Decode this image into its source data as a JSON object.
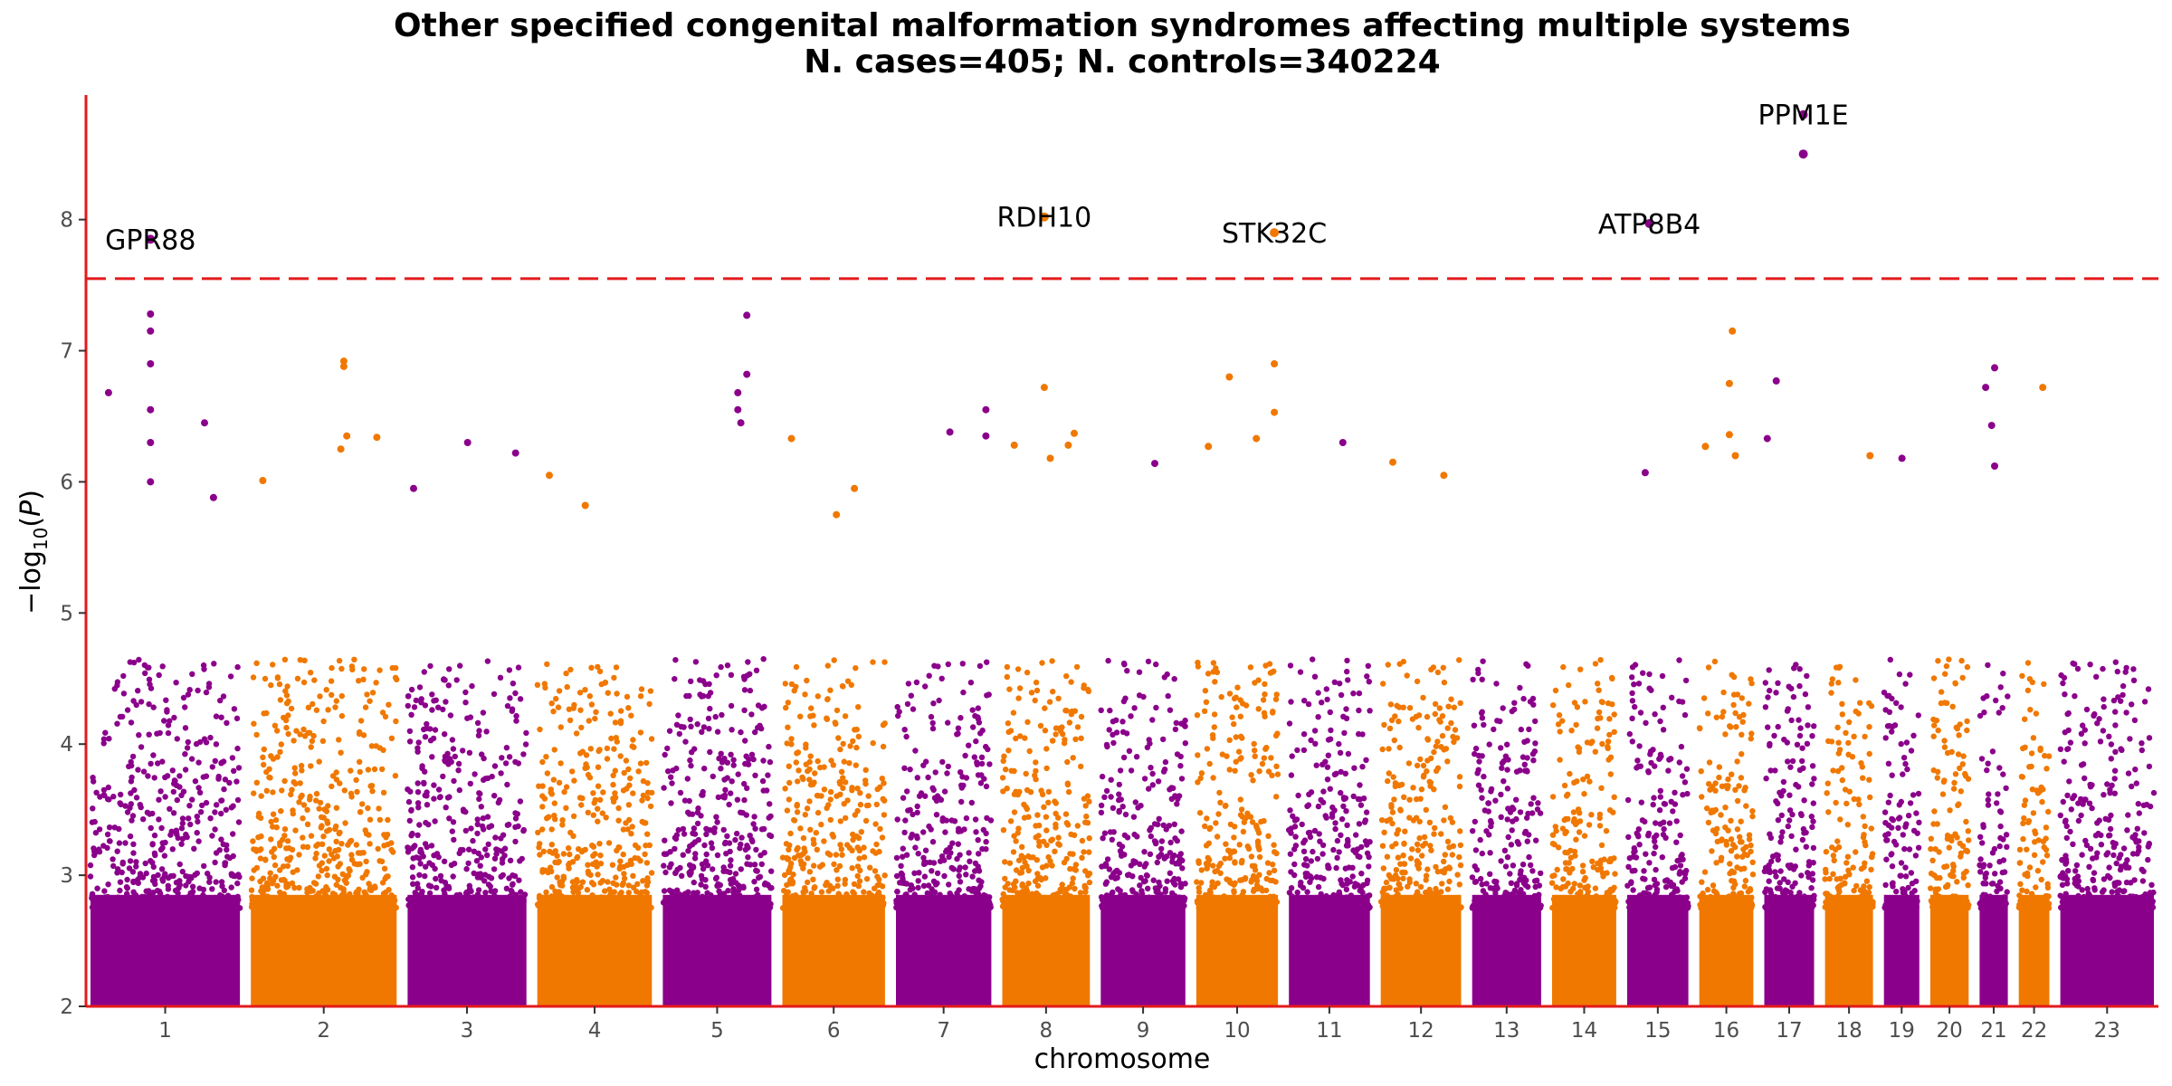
{
  "chart_data": {
    "type": "scatter",
    "title": "Other specified congenital malformation syndromes affecting multiple systems",
    "subtitle": "N. cases=405; N. controls=340224",
    "xlabel": "chromosome",
    "ylabel": "−log10(P)",
    "ylim": [
      2,
      8.95
    ],
    "yticks": [
      2,
      3,
      4,
      5,
      6,
      7,
      8
    ],
    "threshold": 7.55,
    "colors": {
      "odd": "#8b008b",
      "even": "#f07800",
      "axis": "#e31a1c",
      "threshold": "#e31a1c"
    },
    "chromosomes": [
      {
        "label": "1",
        "length": 249
      },
      {
        "label": "2",
        "length": 243
      },
      {
        "label": "3",
        "length": 198
      },
      {
        "label": "4",
        "length": 191
      },
      {
        "label": "5",
        "length": 181
      },
      {
        "label": "6",
        "length": 171
      },
      {
        "label": "7",
        "length": 159
      },
      {
        "label": "8",
        "length": 146
      },
      {
        "label": "9",
        "length": 141
      },
      {
        "label": "10",
        "length": 136
      },
      {
        "label": "11",
        "length": 135
      },
      {
        "label": "12",
        "length": 134
      },
      {
        "label": "13",
        "length": 115
      },
      {
        "label": "14",
        "length": 107
      },
      {
        "label": "15",
        "length": 102
      },
      {
        "label": "16",
        "length": 90
      },
      {
        "label": "17",
        "length": 83
      },
      {
        "label": "18",
        "length": 80
      },
      {
        "label": "19",
        "length": 59
      },
      {
        "label": "20",
        "length": 64
      },
      {
        "label": "21",
        "length": 47
      },
      {
        "label": "22",
        "length": 51
      },
      {
        "label": "23",
        "length": 156
      }
    ],
    "top_hits": [
      {
        "chr": "1",
        "pos": 100,
        "p": 7.85,
        "gene": "GPR88"
      },
      {
        "chr": "8",
        "pos": 70,
        "p": 8.02,
        "gene": "RDH10"
      },
      {
        "chr": "10",
        "pos": 130,
        "p": 7.9,
        "gene": "STK32C"
      },
      {
        "chr": "15",
        "pos": 37,
        "p": 7.97,
        "gene": "ATP8B4"
      },
      {
        "chr": "17",
        "pos": 65,
        "p": 8.8,
        "gene": "PPM1E"
      },
      {
        "chr": "17",
        "pos": 65,
        "p": 8.5,
        "gene": ""
      }
    ],
    "peaks": [
      {
        "chr": "1",
        "pos": 100,
        "p": 7.28
      },
      {
        "chr": "1",
        "pos": 100,
        "p": 7.15
      },
      {
        "chr": "1",
        "pos": 100,
        "p": 6.9
      },
      {
        "chr": "1",
        "pos": 100,
        "p": 6.55
      },
      {
        "chr": "1",
        "pos": 100,
        "p": 6.3
      },
      {
        "chr": "1",
        "pos": 100,
        "p": 6.0
      },
      {
        "chr": "1",
        "pos": 30,
        "p": 6.68
      },
      {
        "chr": "1",
        "pos": 190,
        "p": 6.45
      },
      {
        "chr": "1",
        "pos": 205,
        "p": 5.88
      },
      {
        "chr": "2",
        "pos": 155,
        "p": 6.92
      },
      {
        "chr": "2",
        "pos": 155,
        "p": 6.88
      },
      {
        "chr": "2",
        "pos": 160,
        "p": 6.35
      },
      {
        "chr": "2",
        "pos": 150,
        "p": 6.25
      },
      {
        "chr": "2",
        "pos": 210,
        "p": 6.34
      },
      {
        "chr": "2",
        "pos": 20,
        "p": 6.01
      },
      {
        "chr": "3",
        "pos": 100,
        "p": 6.3
      },
      {
        "chr": "3",
        "pos": 180,
        "p": 6.22
      },
      {
        "chr": "3",
        "pos": 10,
        "p": 5.95
      },
      {
        "chr": "4",
        "pos": 20,
        "p": 6.05
      },
      {
        "chr": "4",
        "pos": 80,
        "p": 5.82
      },
      {
        "chr": "5",
        "pos": 140,
        "p": 7.27
      },
      {
        "chr": "5",
        "pos": 140,
        "p": 6.82
      },
      {
        "chr": "5",
        "pos": 125,
        "p": 6.68
      },
      {
        "chr": "5",
        "pos": 125,
        "p": 6.55
      },
      {
        "chr": "5",
        "pos": 130,
        "p": 6.45
      },
      {
        "chr": "6",
        "pos": 15,
        "p": 6.33
      },
      {
        "chr": "6",
        "pos": 120,
        "p": 5.95
      },
      {
        "chr": "6",
        "pos": 90,
        "p": 5.75
      },
      {
        "chr": "7",
        "pos": 90,
        "p": 6.38
      },
      {
        "chr": "7",
        "pos": 150,
        "p": 6.55
      },
      {
        "chr": "7",
        "pos": 150,
        "p": 6.35
      },
      {
        "chr": "8",
        "pos": 70,
        "p": 6.72
      },
      {
        "chr": "8",
        "pos": 120,
        "p": 6.37
      },
      {
        "chr": "8",
        "pos": 110,
        "p": 6.28
      },
      {
        "chr": "8",
        "pos": 20,
        "p": 6.28
      },
      {
        "chr": "8",
        "pos": 80,
        "p": 6.18
      },
      {
        "chr": "9",
        "pos": 90,
        "p": 6.14
      },
      {
        "chr": "10",
        "pos": 130,
        "p": 6.9
      },
      {
        "chr": "10",
        "pos": 55,
        "p": 6.8
      },
      {
        "chr": "10",
        "pos": 130,
        "p": 6.53
      },
      {
        "chr": "10",
        "pos": 100,
        "p": 6.33
      },
      {
        "chr": "10",
        "pos": 20,
        "p": 6.27
      },
      {
        "chr": "11",
        "pos": 90,
        "p": 6.3
      },
      {
        "chr": "12",
        "pos": 105,
        "p": 6.05
      },
      {
        "chr": "12",
        "pos": 20,
        "p": 6.15
      },
      {
        "chr": "16",
        "pos": 55,
        "p": 7.15
      },
      {
        "chr": "16",
        "pos": 50,
        "p": 6.75
      },
      {
        "chr": "16",
        "pos": 50,
        "p": 6.36
      },
      {
        "chr": "16",
        "pos": 60,
        "p": 6.2
      },
      {
        "chr": "16",
        "pos": 10,
        "p": 6.27
      },
      {
        "chr": "17",
        "pos": 20,
        "p": 6.77
      },
      {
        "chr": "17",
        "pos": 5,
        "p": 6.33
      },
      {
        "chr": "18",
        "pos": 75,
        "p": 6.2
      },
      {
        "chr": "19",
        "pos": 30,
        "p": 6.18
      },
      {
        "chr": "21",
        "pos": 25,
        "p": 6.87
      },
      {
        "chr": "21",
        "pos": 10,
        "p": 6.72
      },
      {
        "chr": "21",
        "pos": 20,
        "p": 6.43
      },
      {
        "chr": "21",
        "pos": 25,
        "p": 6.12
      },
      {
        "chr": "22",
        "pos": 40,
        "p": 6.72
      },
      {
        "chr": "15",
        "pos": 30,
        "p": 6.07
      }
    ]
  }
}
